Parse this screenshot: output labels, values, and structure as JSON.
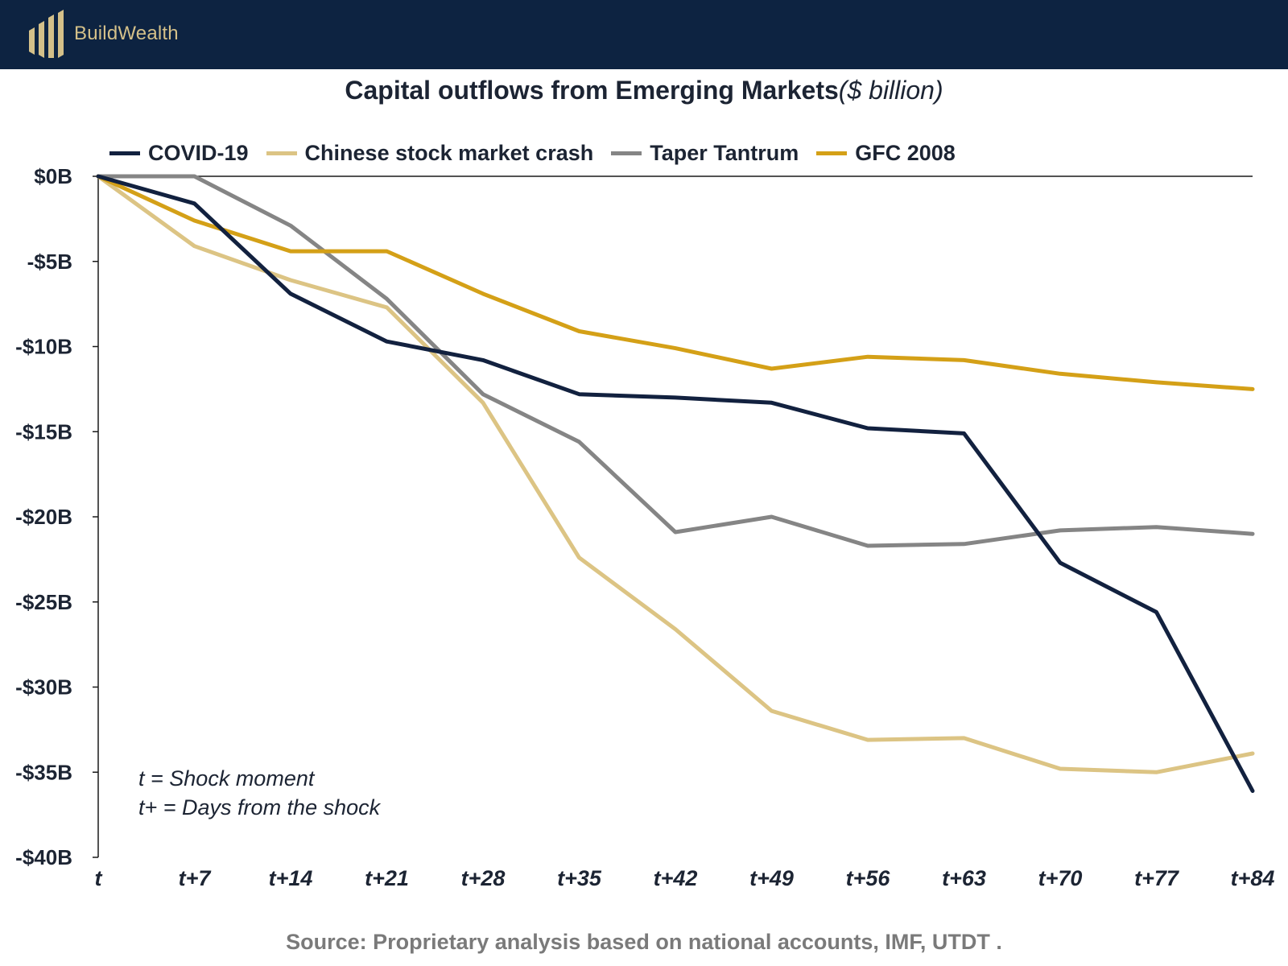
{
  "brand": {
    "name": "BuildWealth",
    "logo_icon": "bar-logo-icon"
  },
  "colors": {
    "header_bg": "#0d2341",
    "gold": "#d4c089",
    "covid": "#12213f",
    "chinese": "#dcc484",
    "taper": "#858585",
    "gfc": "#d4a017"
  },
  "note": {
    "line1": "t = Shock moment",
    "line2": "t+ = Days from the shock"
  },
  "source": "Source:  Proprietary analysis based on national accounts, IMF, UTDT  .",
  "chart_data": {
    "type": "line",
    "title": "Capital outflows from Emerging Markets",
    "title_unit": "($ billion)",
    "xlabel": "",
    "ylabel": "",
    "categories": [
      "t",
      "t+7",
      "t+14",
      "t+21",
      "t+28",
      "t+35",
      "t+42",
      "t+49",
      "t+56",
      "t+63",
      "t+70",
      "t+77",
      "t+84"
    ],
    "ylim": [
      -40,
      0
    ],
    "yticks": [
      0,
      -5,
      -10,
      -15,
      -20,
      -25,
      -30,
      -35,
      -40
    ],
    "ytick_labels": [
      "$0B",
      "-$5B",
      "-$10B",
      "-$15B",
      "-$20B",
      "-$25B",
      "-$30B",
      "-$35B",
      "-$40B"
    ],
    "legend_position": "top",
    "series": [
      {
        "name": "COVID-19",
        "color": "#12213f",
        "values": [
          0,
          -1.6,
          -6.9,
          -9.7,
          -10.8,
          -12.8,
          -13.0,
          -13.3,
          -14.8,
          -15.1,
          -22.7,
          -25.6,
          -36.1
        ]
      },
      {
        "name": "Chinese stock market crash",
        "color": "#dcc484",
        "values": [
          0,
          -4.1,
          -6.1,
          -7.7,
          -13.3,
          -22.4,
          -26.6,
          -31.4,
          -33.1,
          -33.0,
          -34.8,
          -35.0,
          -33.9
        ]
      },
      {
        "name": "Taper Tantrum",
        "color": "#858585",
        "values": [
          0,
          0,
          -2.9,
          -7.2,
          -12.8,
          -15.6,
          -20.9,
          -20.0,
          -21.7,
          -21.6,
          -20.8,
          -20.6,
          -21.0
        ]
      },
      {
        "name": "GFC 2008",
        "color": "#d4a017",
        "values": [
          0,
          -2.6,
          -4.4,
          -4.4,
          -6.9,
          -9.1,
          -10.1,
          -11.3,
          -10.6,
          -10.8,
          -11.6,
          -12.1,
          -12.5
        ]
      }
    ]
  }
}
